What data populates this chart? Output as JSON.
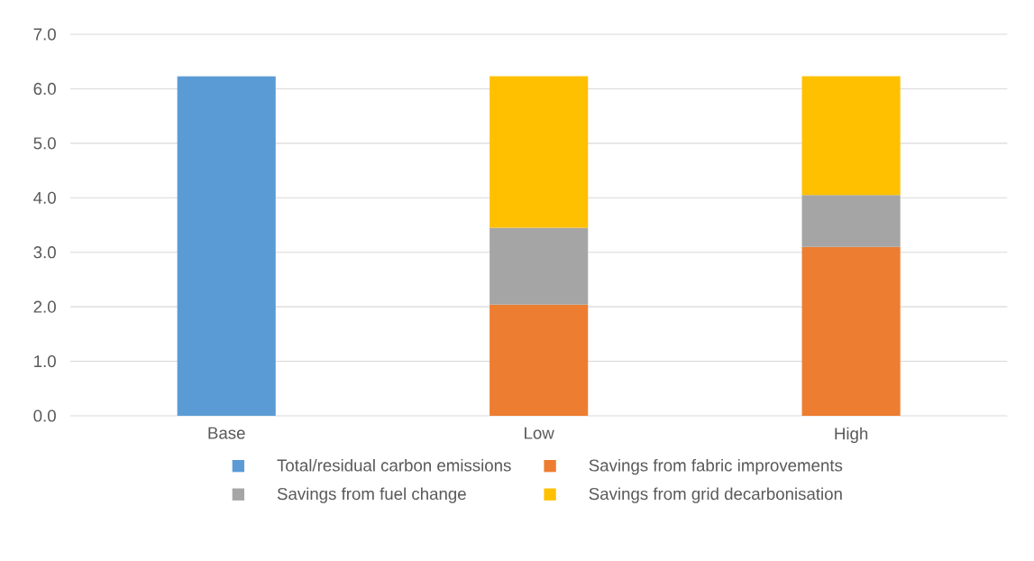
{
  "chart_data": {
    "type": "bar",
    "stacked": true,
    "categories": [
      "Base",
      "Low",
      "High"
    ],
    "series": [
      {
        "name": "Total/residual carbon emissions",
        "color": "#5b9bd5",
        "values": [
          6.23,
          null,
          null
        ]
      },
      {
        "name": "Savings from fabric improvements",
        "color": "#ed7d31",
        "values": [
          null,
          2.04,
          3.1
        ]
      },
      {
        "name": "Savings from fuel change",
        "color": "#a5a5a5",
        "values": [
          null,
          1.41,
          0.95
        ]
      },
      {
        "name": "Savings from grid decarbonisation",
        "color": "#ffc000",
        "values": [
          null,
          2.78,
          2.18
        ]
      }
    ],
    "ylim": [
      0,
      7
    ],
    "yticks": [
      {
        "value": 0,
        "label": "0.0"
      },
      {
        "value": 1,
        "label": "1.0"
      },
      {
        "value": 2,
        "label": "2.0"
      },
      {
        "value": 3,
        "label": "3.0"
      },
      {
        "value": 4,
        "label": "4.0"
      },
      {
        "value": 5,
        "label": "5.0"
      },
      {
        "value": 6,
        "label": "6.0"
      },
      {
        "value": 7,
        "label": "7.0"
      }
    ],
    "grid": "y",
    "legend": "bottom"
  }
}
